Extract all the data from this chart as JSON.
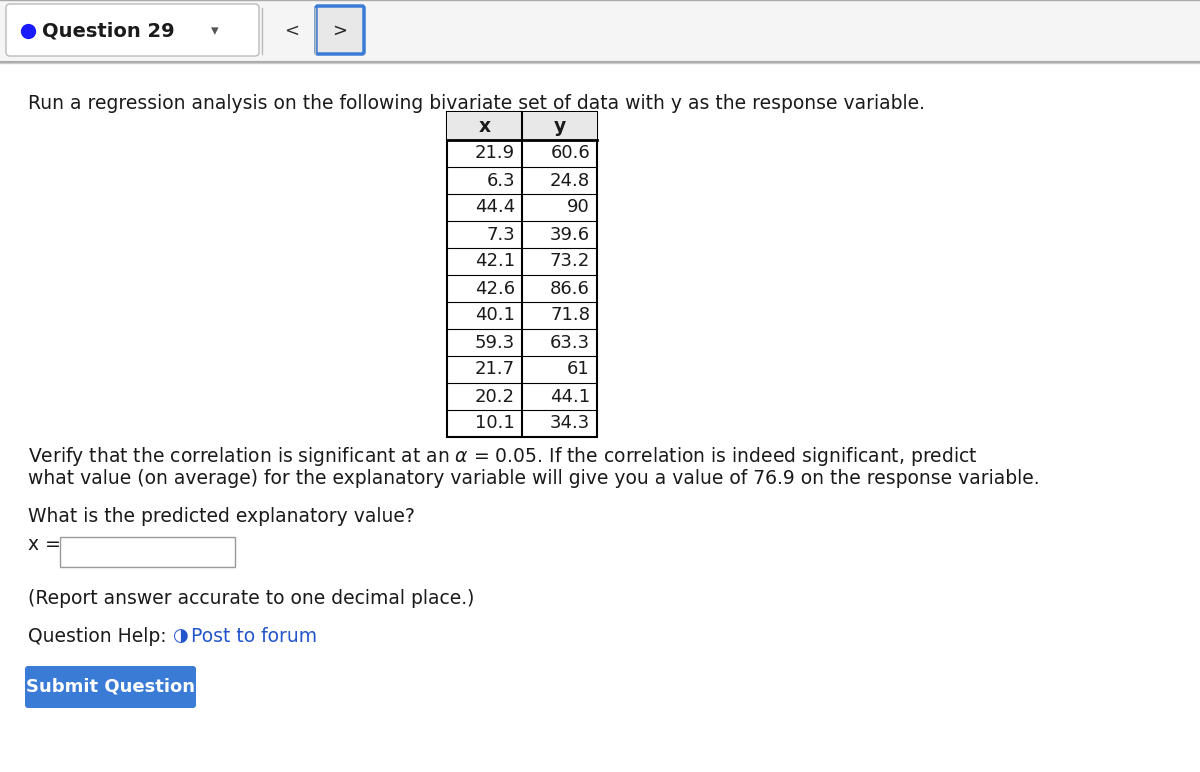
{
  "title_bar": "Question 29",
  "intro_text": "Run a regression analysis on the following bivariate set of data with y as the response variable.",
  "table_headers": [
    "x",
    "y"
  ],
  "table_data": [
    [
      21.9,
      60.6
    ],
    [
      6.3,
      24.8
    ],
    [
      44.4,
      90
    ],
    [
      7.3,
      39.6
    ],
    [
      42.1,
      73.2
    ],
    [
      42.6,
      86.6
    ],
    [
      40.1,
      71.8
    ],
    [
      59.3,
      63.3
    ],
    [
      21.7,
      61
    ],
    [
      20.2,
      44.1
    ],
    [
      10.1,
      34.3
    ]
  ],
  "verify_text_1a": "Verify that the correlation is significant at an ",
  "verify_text_1b": "α",
  "verify_text_1c": " = 0.05. If the correlation is indeed significant, predict",
  "verify_text_2": "what value (on average) for the explanatory variable will give you a value of 76.9 on the response variable.",
  "question_text": "What is the predicted explanatory value?",
  "input_label": "x =",
  "report_text": "(Report answer accurate to one decimal place.)",
  "help_label": "Question Help:",
  "post_icon": "◑",
  "post_text": " Post to forum",
  "submit_text": "Submit Question",
  "bg_color": "#ffffff",
  "nav_bg": "#f5f5f5",
  "nav_border": "#cccccc",
  "bullet_color": "#1a1aff",
  "box_border_color": "#cccccc",
  "nav_active_border": "#3a7bd5",
  "nav_active_bg": "#e8e8e8",
  "text_color": "#1a1a1a",
  "link_color": "#2255cc",
  "submit_bg": "#3a7bd5",
  "submit_text_color": "#ffffff",
  "table_header_bg": "#e8e8e8",
  "font_size": 13.5,
  "nav_font_size": 13.5
}
